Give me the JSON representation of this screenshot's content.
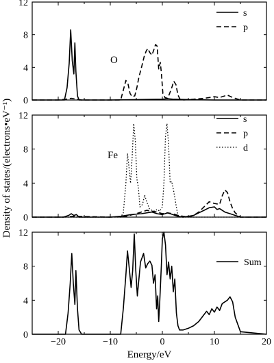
{
  "chart_data": {
    "type": "line",
    "shared_x": {
      "label": "Energy/eV",
      "range": [
        -25,
        20
      ],
      "ticks": [
        -20,
        -10,
        0,
        10,
        20
      ],
      "tick_labels": [
        "−20",
        "−10",
        "0",
        "10",
        "20"
      ]
    },
    "ylabel": "Density of states/(electrons•eV⁻¹)",
    "panels": [
      {
        "label": "O",
        "ylim": [
          0,
          12
        ],
        "yticks": [
          0,
          4,
          8,
          12
        ],
        "legend": [
          {
            "name": "s",
            "style": "solid"
          },
          {
            "name": "p",
            "style": "dashed"
          }
        ],
        "series": [
          {
            "name": "s",
            "style": "solid",
            "x": [
              -25,
              -20,
              -18.8,
              -18.3,
              -17.9,
              -17.6,
              -17.3,
              -17.0,
              -16.8,
              -16.6,
              -16.3,
              -16.0,
              -15.5,
              -10,
              -5,
              0,
              1,
              2,
              5,
              10,
              15,
              20
            ],
            "y": [
              0,
              0,
              0,
              1.5,
              4.5,
              8.6,
              4.8,
              3.2,
              7.0,
              3.5,
              0.5,
              0,
              0,
              0,
              0.05,
              0.1,
              0.15,
              0.1,
              0.05,
              0,
              0,
              0
            ]
          },
          {
            "name": "p",
            "style": "dashed",
            "x": [
              -25,
              -20,
              -18.5,
              -17.5,
              -16.5,
              -15.5,
              -10,
              -8,
              -7.5,
              -7.0,
              -6.6,
              -6.2,
              -5.8,
              -5.3,
              -4.9,
              -4.5,
              -4.0,
              -3.5,
              -3.1,
              -2.8,
              -2.4,
              -2.0,
              -1.6,
              -1.3,
              -1.0,
              -0.7,
              -0.4,
              -0.2,
              0.1,
              0.5,
              1.0,
              1.4,
              1.8,
              2.2,
              2.6,
              3.0,
              3.4,
              4,
              6,
              8,
              9,
              10,
              11,
              12,
              12.5,
              13.5,
              15,
              20
            ],
            "y": [
              0,
              0,
              0.1,
              0.2,
              0.1,
              0,
              0,
              0,
              1.2,
              2.4,
              2.0,
              0.8,
              0.4,
              0.5,
              1.5,
              2.8,
              4.0,
              5.3,
              6.0,
              6.3,
              5.8,
              5.5,
              6.2,
              6.8,
              6.6,
              3.8,
              4.6,
              3.4,
              0.8,
              0.3,
              0.2,
              0.8,
              1.5,
              2.3,
              1.9,
              0.6,
              0.1,
              0,
              0.1,
              0.2,
              0.3,
              0.4,
              0.3,
              0.5,
              0.6,
              0.3,
              0,
              0
            ]
          }
        ]
      },
      {
        "label": "Fe",
        "ylim": [
          0,
          12
        ],
        "yticks": [
          0,
          4,
          8,
          12
        ],
        "legend": [
          {
            "name": "s",
            "style": "solid"
          },
          {
            "name": "p",
            "style": "dashed"
          },
          {
            "name": "d",
            "style": "dotted"
          }
        ],
        "series": [
          {
            "name": "s",
            "style": "solid",
            "x": [
              -25,
              -19,
              -18,
              -17.5,
              -17,
              -16.5,
              -16,
              -10,
              -8,
              -6,
              -4,
              -2,
              -1,
              0,
              1,
              2,
              3,
              4,
              6,
              7,
              8,
              9,
              10,
              10.5,
              11,
              12,
              13,
              14,
              15,
              20
            ],
            "y": [
              0,
              0,
              0.2,
              0.4,
              0.2,
              0.3,
              0,
              0,
              0.1,
              0.3,
              0.4,
              0.6,
              0.4,
              0.3,
              0.5,
              0.3,
              0.1,
              0,
              0.2,
              0.5,
              0.8,
              1.1,
              1.2,
              0.9,
              1.0,
              0.6,
              0.4,
              0.2,
              0,
              0
            ]
          },
          {
            "name": "p",
            "style": "dashed",
            "x": [
              -25,
              -19,
              -17,
              -10,
              -7,
              -5,
              -3,
              -1,
              0,
              1,
              2,
              3,
              5,
              6,
              7,
              8,
              9,
              10,
              11,
              11.5,
              12,
              12.5,
              13,
              13.5,
              14,
              15,
              20
            ],
            "y": [
              0,
              0,
              0.1,
              0,
              0.1,
              0.4,
              0.8,
              0.6,
              0.4,
              0.5,
              0.4,
              0.2,
              0,
              0.2,
              0.6,
              1.2,
              1.8,
              1.6,
              1.5,
              2.5,
              3.2,
              2.9,
              1.8,
              1.0,
              0.5,
              0,
              0
            ]
          },
          {
            "name": "d",
            "style": "dotted",
            "x": [
              -25,
              -10,
              -8,
              -7.5,
              -7.0,
              -6.7,
              -6.4,
              -6.1,
              -5.8,
              -5.5,
              -5.2,
              -4.9,
              -4.6,
              -4.3,
              -3.8,
              -3.4,
              -3.0,
              -2.5,
              -2.0,
              -1.5,
              -1.0,
              -0.5,
              0.0,
              0.3,
              0.6,
              0.9,
              1.2,
              1.5,
              1.8,
              2.2,
              2.6,
              2.9,
              3.2,
              4,
              20
            ],
            "y": [
              0,
              0,
              0,
              0.5,
              4.0,
              7.5,
              5.8,
              4.0,
              7.0,
              11.0,
              9.0,
              4.5,
              3.5,
              1.2,
              1.5,
              2.6,
              1.8,
              1.0,
              0.8,
              0.7,
              0.9,
              0.7,
              1.2,
              4.0,
              9.5,
              11.0,
              8.5,
              4.0,
              4.2,
              3.0,
              1.5,
              0.5,
              0,
              0,
              0
            ]
          }
        ]
      },
      {
        "label": "",
        "ylim": [
          0,
          12
        ],
        "yticks": [
          0,
          4,
          8,
          12
        ],
        "legend": [
          {
            "name": "Sum",
            "style": "solid"
          }
        ],
        "series": [
          {
            "name": "Sum",
            "style": "solid",
            "x": [
              -25,
              -19,
              -18.6,
              -18.1,
              -17.7,
              -17.4,
              -17.1,
              -16.8,
              -16.6,
              -16.3,
              -16.0,
              -15.5,
              -10,
              -8,
              -7.5,
              -7.0,
              -6.7,
              -6.4,
              -6.0,
              -5.7,
              -5.4,
              -5.1,
              -4.8,
              -4.5,
              -4.2,
              -3.9,
              -3.6,
              -3.2,
              -2.8,
              -2.4,
              -2.0,
              -1.7,
              -1.4,
              -1.1,
              -0.9,
              -0.7,
              -0.5,
              -0.2,
              0.0,
              0.3,
              0.6,
              0.9,
              1.2,
              1.5,
              1.8,
              2.1,
              2.4,
              2.7,
              3.0,
              3.3,
              4,
              5,
              6,
              7,
              8,
              8.5,
              9,
              9.5,
              10,
              10.5,
              11,
              11.5,
              12,
              12.5,
              13,
              13.5,
              14,
              15,
              20
            ],
            "y": [
              0,
              0,
              0,
              2.5,
              6.0,
              9.5,
              6.0,
              3.5,
              7.5,
              3.0,
              0.5,
              0,
              0,
              0,
              3.0,
              7.0,
              9.8,
              8.0,
              5.5,
              7.5,
              11.8,
              7.5,
              4.5,
              6.5,
              8.5,
              9.0,
              9.5,
              7.8,
              8.3,
              8.6,
              8.1,
              6.0,
              7.0,
              3.0,
              4.5,
              1.5,
              3.8,
              8.0,
              11.2,
              12.0,
              10.5,
              7.0,
              8.5,
              6.5,
              8.0,
              5.0,
              6.5,
              2.5,
              1.0,
              0.5,
              0.5,
              0.7,
              1.0,
              1.5,
              2.3,
              2.7,
              2.3,
              3.0,
              2.6,
              3.2,
              2.8,
              3.6,
              3.8,
              4.0,
              4.4,
              3.8,
              2.0,
              0.3,
              0
            ]
          }
        ]
      }
    ]
  }
}
